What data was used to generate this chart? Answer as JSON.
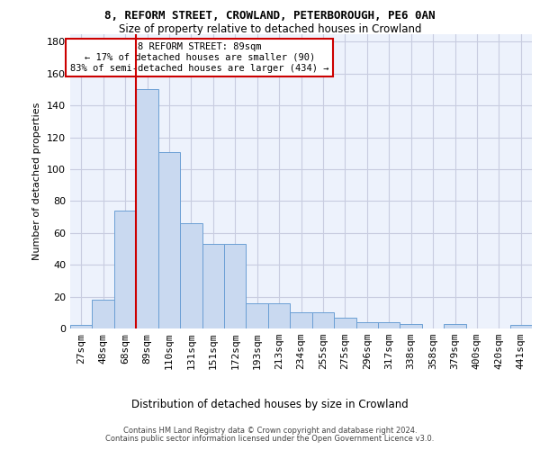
{
  "title_line1": "8, REFORM STREET, CROWLAND, PETERBOROUGH, PE6 0AN",
  "title_line2": "Size of property relative to detached houses in Crowland",
  "xlabel": "Distribution of detached houses by size in Crowland",
  "ylabel": "Number of detached properties",
  "footer1": "Contains HM Land Registry data © Crown copyright and database right 2024.",
  "footer2": "Contains public sector information licensed under the Open Government Licence v3.0.",
  "annotation_title": "8 REFORM STREET: 89sqm",
  "annotation_line1": "← 17% of detached houses are smaller (90)",
  "annotation_line2": "83% of semi-detached houses are larger (434) →",
  "bar_categories": [
    "27sqm",
    "48sqm",
    "68sqm",
    "89sqm",
    "110sqm",
    "131sqm",
    "151sqm",
    "172sqm",
    "193sqm",
    "213sqm",
    "234sqm",
    "255sqm",
    "275sqm",
    "296sqm",
    "317sqm",
    "338sqm",
    "358sqm",
    "379sqm",
    "400sqm",
    "420sqm",
    "441sqm"
  ],
  "bar_values": [
    2,
    18,
    74,
    150,
    111,
    66,
    53,
    53,
    16,
    16,
    10,
    10,
    7,
    4,
    4,
    3,
    0,
    3,
    0,
    0,
    2
  ],
  "bar_color": "#c9d9f0",
  "bar_edge_color": "#6b9fd4",
  "vline_color": "#cc0000",
  "vline_x_index": 3,
  "ylim": [
    0,
    185
  ],
  "yticks": [
    0,
    20,
    40,
    60,
    80,
    100,
    120,
    140,
    160,
    180
  ],
  "grid_color": "#c8cce0",
  "bg_color": "#edf2fc"
}
